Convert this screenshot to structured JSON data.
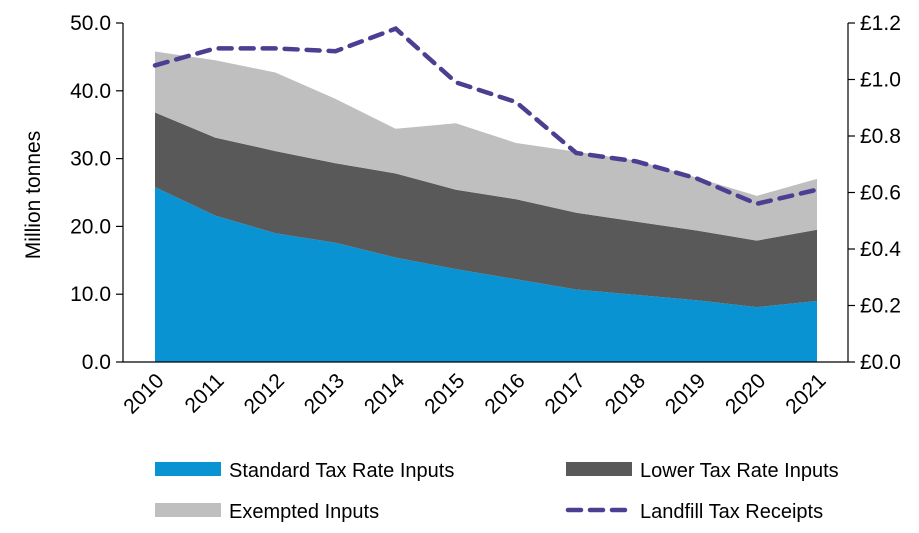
{
  "chart_data": {
    "type": "area",
    "stacked": true,
    "categories": [
      "2010",
      "2011",
      "2012",
      "2013",
      "2014",
      "2015",
      "2016",
      "2017",
      "2018",
      "2019",
      "2020",
      "2021"
    ],
    "ylabel": "Million tonnes",
    "ylim": [
      0,
      50
    ],
    "y_ticks": [
      "0.0",
      "10.0",
      "20.0",
      "30.0",
      "40.0",
      "50.0"
    ],
    "y2lim": [
      0,
      1.2
    ],
    "y2_ticks": [
      "£0.0",
      "£0.2",
      "£0.4",
      "£0.6",
      "£0.8",
      "£1.0",
      "£1.2"
    ],
    "series": [
      {
        "name": "Standard Tax Rate Inputs",
        "color": "#0a93d2",
        "values": [
          25.8,
          21.6,
          19.0,
          17.6,
          15.4,
          13.7,
          12.2,
          10.7,
          9.9,
          9.1,
          8.1,
          9.0
        ]
      },
      {
        "name": "Lower Tax Rate Inputs",
        "color": "#595959",
        "values": [
          11.0,
          11.5,
          12.1,
          11.7,
          12.4,
          11.7,
          11.8,
          11.3,
          10.8,
          10.3,
          9.8,
          10.5
        ]
      },
      {
        "name": "Exempted Inputs",
        "color": "#bfbfbf",
        "values": [
          9.0,
          11.4,
          11.6,
          9.5,
          6.6,
          9.8,
          8.3,
          9.0,
          9.0,
          7.8,
          6.6,
          7.5
        ]
      }
    ],
    "line_series": {
      "name": "Landfill Tax Receipts",
      "color": "#4b3f92",
      "axis": "right",
      "values": [
        1.05,
        1.11,
        1.11,
        1.1,
        1.18,
        0.99,
        0.92,
        0.74,
        0.71,
        0.65,
        0.56,
        0.61
      ]
    },
    "legend_position": "bottom",
    "grid": false
  }
}
